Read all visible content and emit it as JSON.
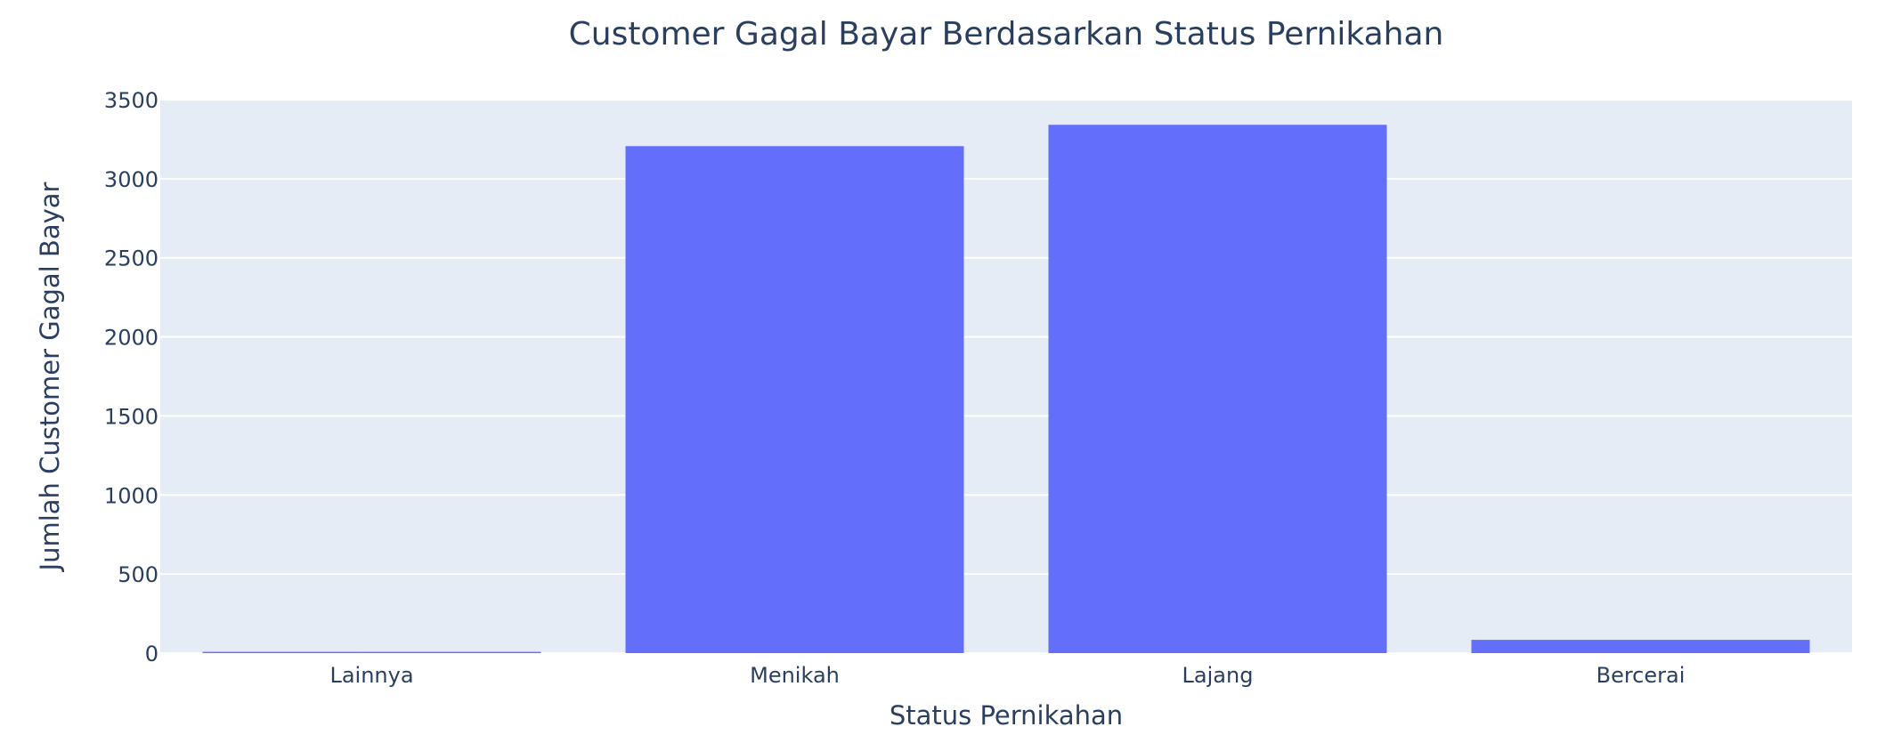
{
  "chart_data": {
    "type": "bar",
    "title": "Customer Gagal Bayar Berdasarkan Status Pernikahan",
    "xlabel": "Status Pernikahan",
    "ylabel": "Jumlah Customer Gagal Bayar",
    "categories": [
      "Lainnya",
      "Menikah",
      "Lajang",
      "Bercerai"
    ],
    "values": [
      8,
      3206,
      3341,
      84
    ],
    "ylim": [
      0,
      3500
    ],
    "yticks": [
      0,
      500,
      1000,
      1500,
      2000,
      2500,
      3000,
      3500
    ],
    "grid": true,
    "legend": "none",
    "colors": {
      "bar": "#636efa",
      "plot_background": "#e5ecf6",
      "grid": "#ffffff",
      "text": "#2a3f5f"
    }
  }
}
